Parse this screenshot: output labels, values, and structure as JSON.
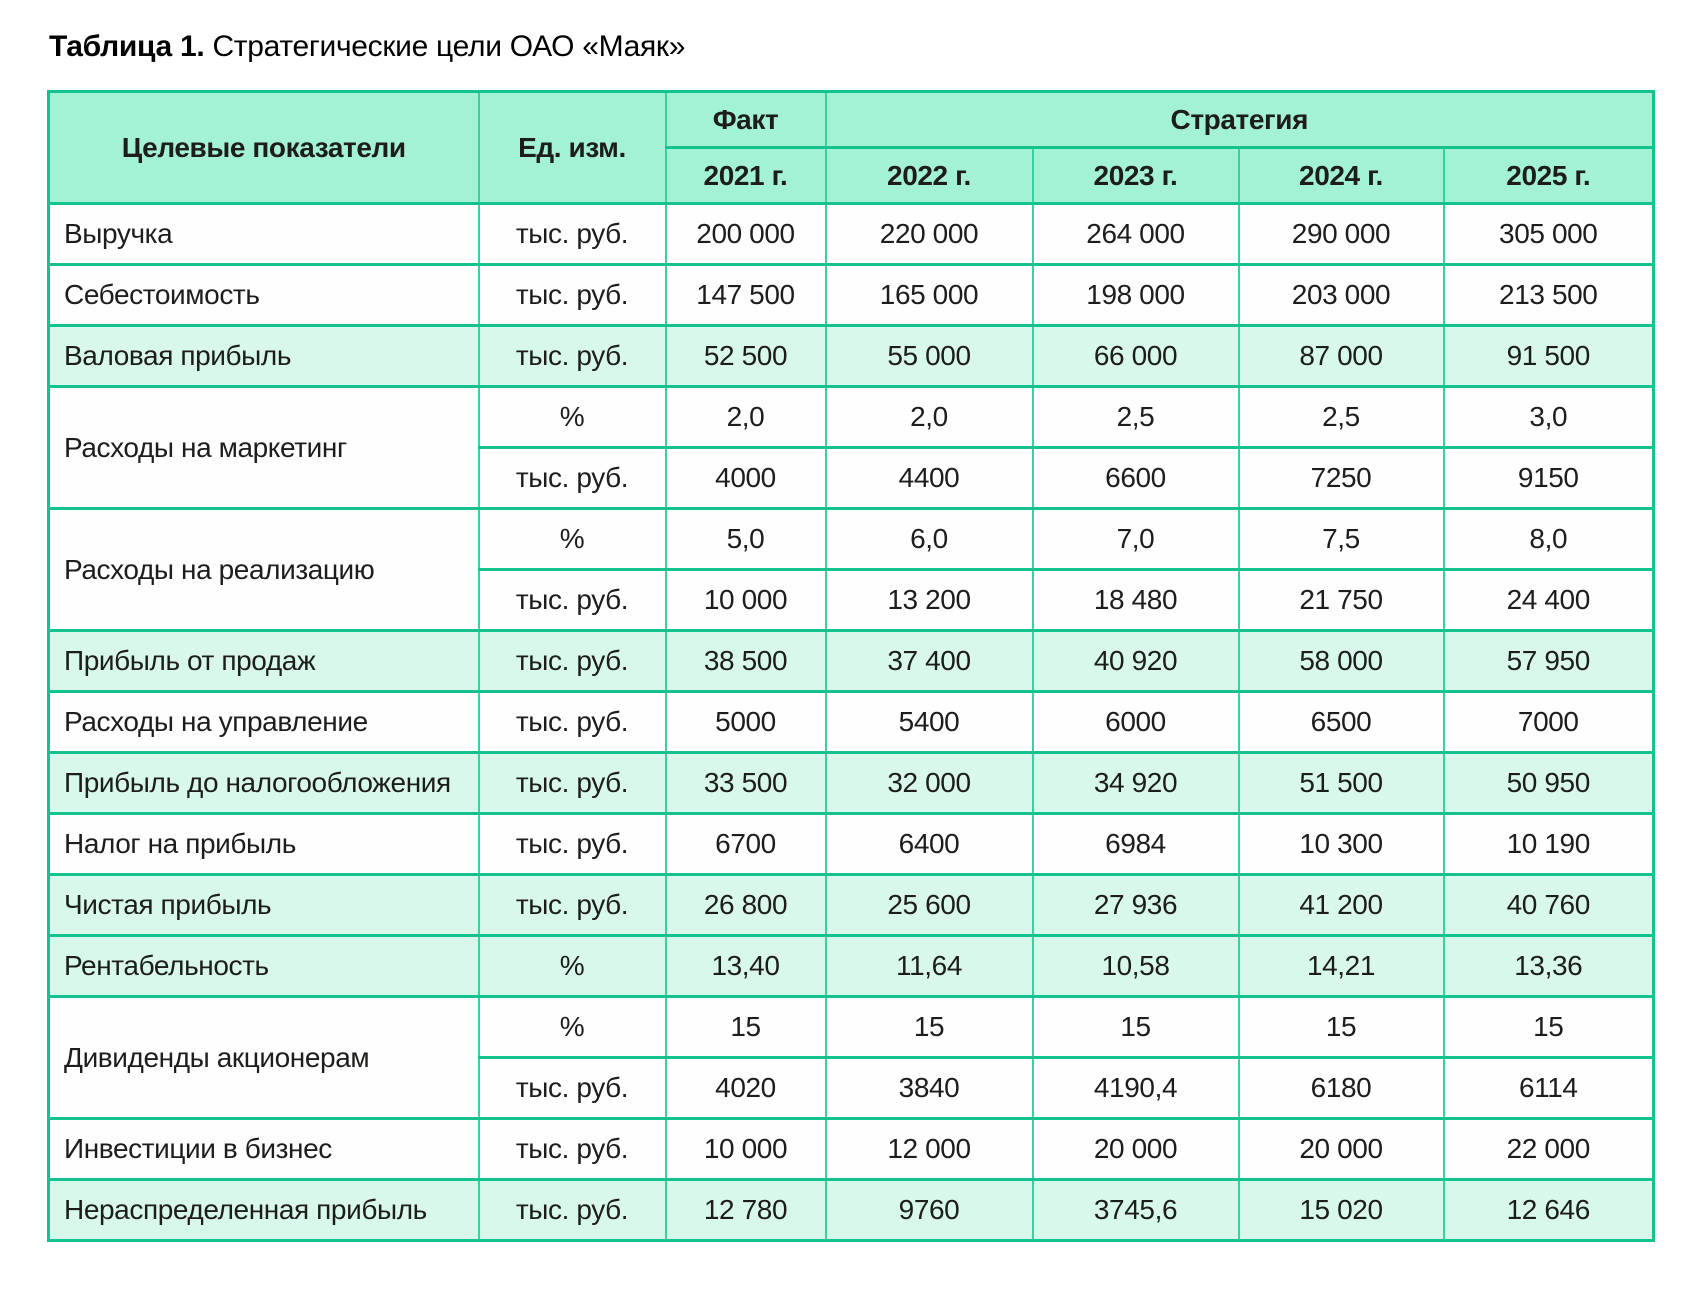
{
  "title": {
    "prefix": "Таблица 1.",
    "text": " Стратегические цели ОАО «Маяк»"
  },
  "colors": {
    "border_horizontal": "#13c28e",
    "border_vertical": "#35d2a4",
    "header_background": "#a4f2d4",
    "highlight_row_background": "#d8f8ec",
    "row_background": "#fdfefd",
    "text": "#1d1d1b"
  },
  "table": {
    "header": {
      "col_indicator": "Целевые показатели",
      "col_unit": "Ед. изм.",
      "fact": "Факт",
      "strategy": "Стратегия",
      "years": [
        "2021 г.",
        "2022 г.",
        "2023 г.",
        "2024 г.",
        "2025 г."
      ]
    },
    "groups": [
      {
        "indicator": "Выручка",
        "highlight": false,
        "lines": [
          {
            "unit": "тыс. руб.",
            "values": [
              "200 000",
              "220 000",
              "264 000",
              "290 000",
              "305 000"
            ]
          }
        ]
      },
      {
        "indicator": "Себестоимость",
        "highlight": false,
        "lines": [
          {
            "unit": "тыс. руб.",
            "values": [
              "147 500",
              "165 000",
              "198 000",
              "203 000",
              "213 500"
            ]
          }
        ]
      },
      {
        "indicator": "Валовая прибыль",
        "highlight": true,
        "lines": [
          {
            "unit": "тыс. руб.",
            "values": [
              "52 500",
              "55 000",
              "66 000",
              "87 000",
              "91 500"
            ]
          }
        ]
      },
      {
        "indicator": "Расходы на маркетинг",
        "highlight": false,
        "lines": [
          {
            "unit": "%",
            "values": [
              "2,0",
              "2,0",
              "2,5",
              "2,5",
              "3,0"
            ]
          },
          {
            "unit": "тыс. руб.",
            "values": [
              "4000",
              "4400",
              "6600",
              "7250",
              "9150"
            ]
          }
        ]
      },
      {
        "indicator": "Расходы на реализацию",
        "highlight": false,
        "lines": [
          {
            "unit": "%",
            "values": [
              "5,0",
              "6,0",
              "7,0",
              "7,5",
              "8,0"
            ]
          },
          {
            "unit": "тыс. руб.",
            "values": [
              "10 000",
              "13 200",
              "18 480",
              "21 750",
              "24 400"
            ]
          }
        ]
      },
      {
        "indicator": "Прибыль от продаж",
        "highlight": true,
        "lines": [
          {
            "unit": "тыс. руб.",
            "values": [
              "38 500",
              "37 400",
              "40 920",
              "58 000",
              "57 950"
            ]
          }
        ]
      },
      {
        "indicator": "Расходы на управление",
        "highlight": false,
        "lines": [
          {
            "unit": "тыс. руб.",
            "values": [
              "5000",
              "5400",
              "6000",
              "6500",
              "7000"
            ]
          }
        ]
      },
      {
        "indicator": "Прибыль до налогообложения",
        "highlight": true,
        "lines": [
          {
            "unit": "тыс. руб.",
            "values": [
              "33 500",
              "32 000",
              "34 920",
              "51 500",
              "50 950"
            ]
          }
        ]
      },
      {
        "indicator": "Налог на прибыль",
        "highlight": false,
        "lines": [
          {
            "unit": "тыс. руб.",
            "values": [
              "6700",
              "6400",
              "6984",
              "10 300",
              "10 190"
            ]
          }
        ]
      },
      {
        "indicator": "Чистая прибыль",
        "highlight": true,
        "lines": [
          {
            "unit": "тыс. руб.",
            "values": [
              "26 800",
              "25 600",
              "27 936",
              "41 200",
              "40 760"
            ]
          }
        ]
      },
      {
        "indicator": "Рентабельность",
        "highlight": true,
        "lines": [
          {
            "unit": "%",
            "values": [
              "13,40",
              "11,64",
              "10,58",
              "14,21",
              "13,36"
            ]
          }
        ]
      },
      {
        "indicator": "Дивиденды акционерам",
        "highlight": false,
        "lines": [
          {
            "unit": "%",
            "values": [
              "15",
              "15",
              "15",
              "15",
              "15"
            ]
          },
          {
            "unit": "тыс. руб.",
            "values": [
              "4020",
              "3840",
              "4190,4",
              "6180",
              "6114"
            ]
          }
        ]
      },
      {
        "indicator": "Инвестиции в бизнес",
        "highlight": false,
        "lines": [
          {
            "unit": "тыс. руб.",
            "values": [
              "10 000",
              "12 000",
              "20 000",
              "20 000",
              "22 000"
            ]
          }
        ]
      },
      {
        "indicator": "Нераспределенная прибыль",
        "highlight": true,
        "lines": [
          {
            "unit": "тыс. руб.",
            "values": [
              "12 780",
              "9760",
              "3745,6",
              "15 020",
              "12 646"
            ]
          }
        ]
      }
    ]
  }
}
